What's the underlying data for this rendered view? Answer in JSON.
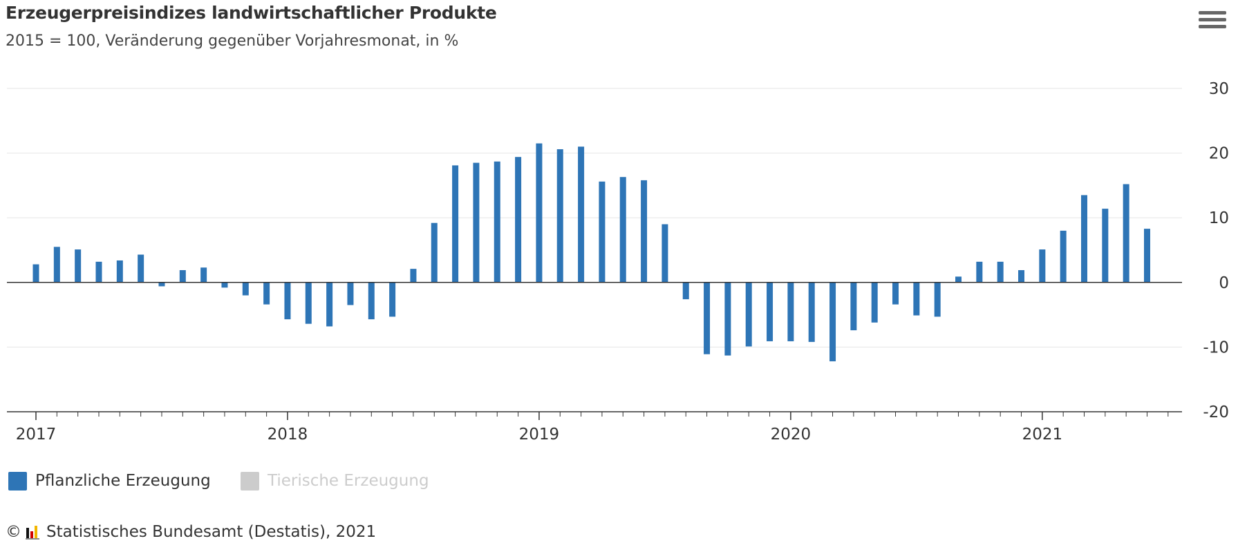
{
  "title": "Erzeugerpreisindizes landwirtschaftlicher Produkte",
  "subtitle": "2015 = 100, Veränderung gegenüber Vorjahresmonat, in %",
  "menu_icon": "hamburger-menu-icon",
  "legend": [
    {
      "label": "Pflanzliche Erzeugung",
      "color": "#2e75b6",
      "active": true
    },
    {
      "label": "Tierische Erzeugung",
      "color": "#cccccc",
      "active": false
    }
  ],
  "credit": {
    "copyright_symbol": "©",
    "text": "Statistisches Bundesamt (Destatis), 2021",
    "logo_icon": "destatis-logo-icon"
  },
  "chart_data": {
    "type": "bar",
    "x_axis": {
      "tick_labels": [
        "2017",
        "2018",
        "2019",
        "2020",
        "2021"
      ]
    },
    "y_axis": {
      "position": "right",
      "ticks": [
        30,
        20,
        10,
        0,
        -10,
        -20
      ],
      "ylim": [
        -20,
        30
      ]
    },
    "grid": true,
    "bar_color": "#2e75b6",
    "series": [
      {
        "name": "Pflanzliche Erzeugung",
        "x": [
          "2017-01",
          "2017-02",
          "2017-03",
          "2017-04",
          "2017-05",
          "2017-06",
          "2017-07",
          "2017-08",
          "2017-09",
          "2017-10",
          "2017-11",
          "2017-12",
          "2018-01",
          "2018-02",
          "2018-03",
          "2018-04",
          "2018-05",
          "2018-06",
          "2018-07",
          "2018-08",
          "2018-09",
          "2018-10",
          "2018-11",
          "2018-12",
          "2019-01",
          "2019-02",
          "2019-03",
          "2019-04",
          "2019-05",
          "2019-06",
          "2019-07",
          "2019-08",
          "2019-09",
          "2019-10",
          "2019-11",
          "2019-12",
          "2020-01",
          "2020-02",
          "2020-03",
          "2020-04",
          "2020-05",
          "2020-06",
          "2020-07",
          "2020-08",
          "2020-09",
          "2020-10",
          "2020-11",
          "2020-12",
          "2021-01",
          "2021-02",
          "2021-03",
          "2021-04",
          "2021-05",
          "2021-06"
        ],
        "values": [
          2.8,
          5.5,
          5.1,
          3.2,
          3.4,
          4.3,
          -0.6,
          1.9,
          2.3,
          -0.8,
          -2.0,
          -3.4,
          -5.7,
          -6.4,
          -6.8,
          -3.5,
          -5.7,
          -5.3,
          2.1,
          9.2,
          18.1,
          18.5,
          18.7,
          19.4,
          21.5,
          20.6,
          21.0,
          15.6,
          16.3,
          15.8,
          9.0,
          -2.6,
          -11.1,
          -11.3,
          -9.9,
          -9.1,
          -9.1,
          -9.2,
          -12.2,
          -7.4,
          -6.2,
          -3.4,
          -5.1,
          -5.3,
          0.9,
          3.2,
          3.2,
          1.9,
          5.1,
          8.0,
          13.5,
          11.4,
          15.2,
          8.3
        ]
      }
    ]
  }
}
